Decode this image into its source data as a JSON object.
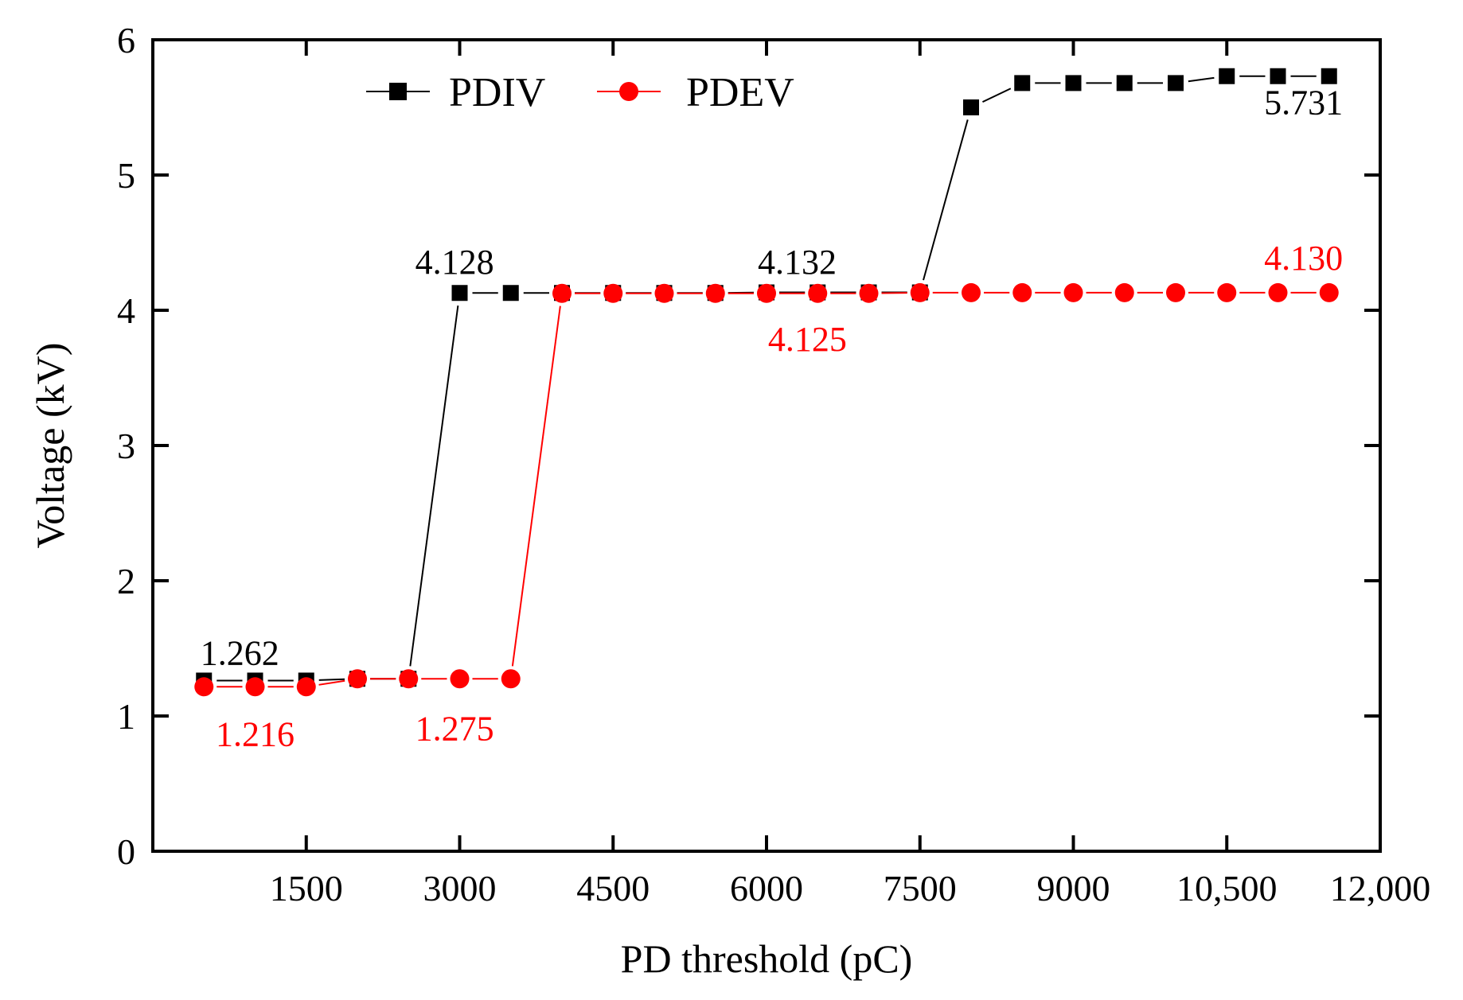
{
  "chart_data": {
    "type": "line",
    "title": "",
    "xlabel": "PD threshold (pC)",
    "ylabel": "Voltage (kV)",
    "xlim": [
      0,
      12000
    ],
    "ylim": [
      0,
      6
    ],
    "x_ticks": [
      1500,
      3000,
      4500,
      6000,
      7500,
      9000,
      10500,
      12000
    ],
    "x_tick_labels": [
      "1500",
      "3000",
      "4500",
      "6000",
      "7500",
      "9000",
      "10,500",
      "12,000"
    ],
    "y_ticks": [
      0,
      1,
      2,
      3,
      4,
      5,
      6
    ],
    "y_tick_labels": [
      "0",
      "1",
      "2",
      "3",
      "4",
      "5",
      "6"
    ],
    "x": [
      500,
      1000,
      1500,
      2000,
      2500,
      3000,
      3500,
      4000,
      4500,
      5000,
      5500,
      6000,
      6500,
      7000,
      7500,
      8000,
      8500,
      9000,
      9500,
      10000,
      10500,
      11000,
      11500
    ],
    "series": [
      {
        "name": "PDIV",
        "color": "#000000",
        "marker": "square",
        "values": [
          1.262,
          1.262,
          1.262,
          1.275,
          1.275,
          4.128,
          4.128,
          4.128,
          4.128,
          4.128,
          4.128,
          4.132,
          4.132,
          4.132,
          4.132,
          5.5,
          5.68,
          5.68,
          5.68,
          5.68,
          5.731,
          5.731,
          5.731
        ]
      },
      {
        "name": "PDEV",
        "color": "#ff0000",
        "marker": "circle",
        "values": [
          1.216,
          1.216,
          1.216,
          1.275,
          1.275,
          1.275,
          1.275,
          4.125,
          4.125,
          4.125,
          4.125,
          4.125,
          4.125,
          4.125,
          4.13,
          4.13,
          4.13,
          4.13,
          4.13,
          4.13,
          4.13,
          4.13,
          4.13
        ]
      }
    ],
    "annotations": [
      {
        "text": "1.262",
        "x": 850,
        "y": 1.38,
        "color": "#000000"
      },
      {
        "text": "1.216",
        "x": 1000,
        "y": 0.78,
        "color": "#ff0000"
      },
      {
        "text": "1.275",
        "x": 2950,
        "y": 0.82,
        "color": "#ff0000"
      },
      {
        "text": "4.128",
        "x": 2950,
        "y": 4.27,
        "color": "#000000"
      },
      {
        "text": "4.132",
        "x": 6300,
        "y": 4.27,
        "color": "#000000"
      },
      {
        "text": "4.125",
        "x": 6400,
        "y": 3.7,
        "color": "#ff0000"
      },
      {
        "text": "5.731",
        "x": 11250,
        "y": 5.45,
        "color": "#000000"
      },
      {
        "text": "4.130",
        "x": 11250,
        "y": 4.3,
        "color": "#ff0000"
      }
    ],
    "legend": {
      "placement": "top-left",
      "entries": [
        "PDIV",
        "PDEV"
      ]
    },
    "grid": false
  }
}
